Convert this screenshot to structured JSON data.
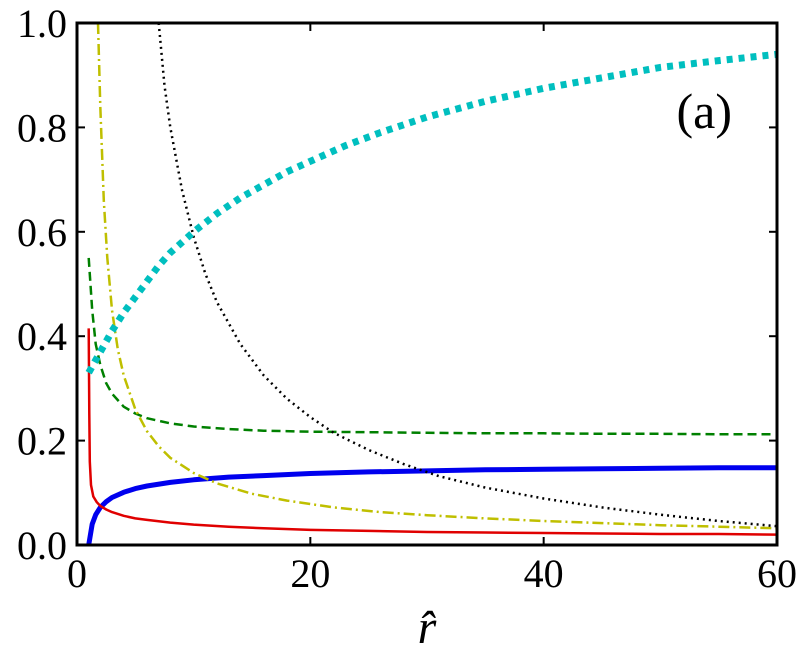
{
  "chart_data": {
    "type": "line",
    "title": "",
    "panel_label": "(a)",
    "xlabel": "r̂",
    "ylabel": "",
    "xlim": [
      0,
      60
    ],
    "ylim": [
      0,
      1.0
    ],
    "x_ticks": [
      0,
      20,
      40,
      60
    ],
    "x_tick_labels": [
      "0",
      "20",
      "40",
      "60"
    ],
    "y_ticks": [
      0,
      0.2,
      0.4,
      0.6,
      0.8,
      1.0
    ],
    "y_tick_labels": [
      "0.0",
      "0.2",
      "0.4",
      "0.6",
      "0.8",
      "1.0"
    ],
    "grid": false,
    "legend": "none",
    "series": [
      {
        "color": "#0000ee",
        "style": "solid-thick",
        "x": [
          1,
          1.3,
          1.6,
          2,
          2.5,
          3,
          4,
          5,
          6,
          8,
          10,
          13,
          16,
          20,
          25,
          30,
          35,
          40,
          45,
          50,
          55,
          60
        ],
        "values": [
          0.0,
          0.04,
          0.058,
          0.072,
          0.083,
          0.091,
          0.101,
          0.108,
          0.113,
          0.12,
          0.125,
          0.13,
          0.133,
          0.137,
          0.14,
          0.142,
          0.144,
          0.145,
          0.146,
          0.147,
          0.148,
          0.148
        ]
      },
      {
        "color": "#e00000",
        "style": "solid",
        "x": [
          1,
          1.05,
          1.1,
          1.2,
          1.4,
          1.7,
          2,
          2.5,
          3,
          4,
          5,
          6,
          8,
          10,
          13,
          16,
          20,
          25,
          30,
          35,
          40,
          45,
          50,
          55,
          60
        ],
        "values": [
          0.415,
          0.25,
          0.16,
          0.115,
          0.093,
          0.082,
          0.075,
          0.068,
          0.063,
          0.056,
          0.051,
          0.048,
          0.043,
          0.039,
          0.035,
          0.032,
          0.029,
          0.027,
          0.025,
          0.024,
          0.023,
          0.022,
          0.021,
          0.021,
          0.02
        ]
      },
      {
        "color": "#008000",
        "style": "dashed",
        "x": [
          1,
          1.3,
          1.6,
          2,
          2.5,
          3,
          4,
          5,
          6,
          8,
          10,
          13,
          16,
          20,
          25,
          30,
          35,
          40,
          45,
          50,
          55,
          60
        ],
        "values": [
          0.55,
          0.45,
          0.385,
          0.345,
          0.31,
          0.29,
          0.265,
          0.252,
          0.243,
          0.233,
          0.227,
          0.222,
          0.219,
          0.217,
          0.216,
          0.215,
          0.214,
          0.214,
          0.213,
          0.213,
          0.212,
          0.212
        ]
      },
      {
        "color": "#bfbf00",
        "style": "dashdot",
        "x": [
          1.8,
          2,
          2.3,
          2.6,
          3,
          3.5,
          4,
          5,
          6,
          7,
          8,
          10,
          12,
          15,
          18,
          22,
          26,
          30,
          35,
          40,
          45,
          50,
          55,
          60
        ],
        "values": [
          1.0,
          0.84,
          0.66,
          0.55,
          0.45,
          0.375,
          0.325,
          0.26,
          0.218,
          0.189,
          0.167,
          0.138,
          0.118,
          0.098,
          0.085,
          0.072,
          0.063,
          0.057,
          0.051,
          0.046,
          0.042,
          0.038,
          0.035,
          0.032
        ]
      },
      {
        "color": "#000000",
        "style": "dotted",
        "x": [
          7,
          7.5,
          8,
          9,
          10,
          11,
          12,
          14,
          16,
          18,
          20,
          22,
          25,
          28,
          31,
          35,
          40,
          45,
          50,
          55,
          60
        ],
        "values": [
          1.0,
          0.88,
          0.8,
          0.68,
          0.59,
          0.52,
          0.465,
          0.385,
          0.325,
          0.28,
          0.245,
          0.215,
          0.182,
          0.155,
          0.132,
          0.11,
          0.089,
          0.072,
          0.058,
          0.046,
          0.036
        ]
      },
      {
        "color": "#00bfbf",
        "style": "dotted-thick",
        "x": [
          1,
          1.5,
          2,
          3,
          4,
          5,
          6,
          7,
          8,
          10,
          12,
          14,
          16,
          18,
          20,
          23,
          26,
          30,
          35,
          40,
          45,
          50,
          55,
          60
        ],
        "values": [
          0.33,
          0.35,
          0.37,
          0.41,
          0.445,
          0.475,
          0.505,
          0.535,
          0.56,
          0.6,
          0.635,
          0.665,
          0.69,
          0.715,
          0.735,
          0.765,
          0.79,
          0.82,
          0.85,
          0.875,
          0.895,
          0.915,
          0.928,
          0.94
        ]
      }
    ]
  }
}
